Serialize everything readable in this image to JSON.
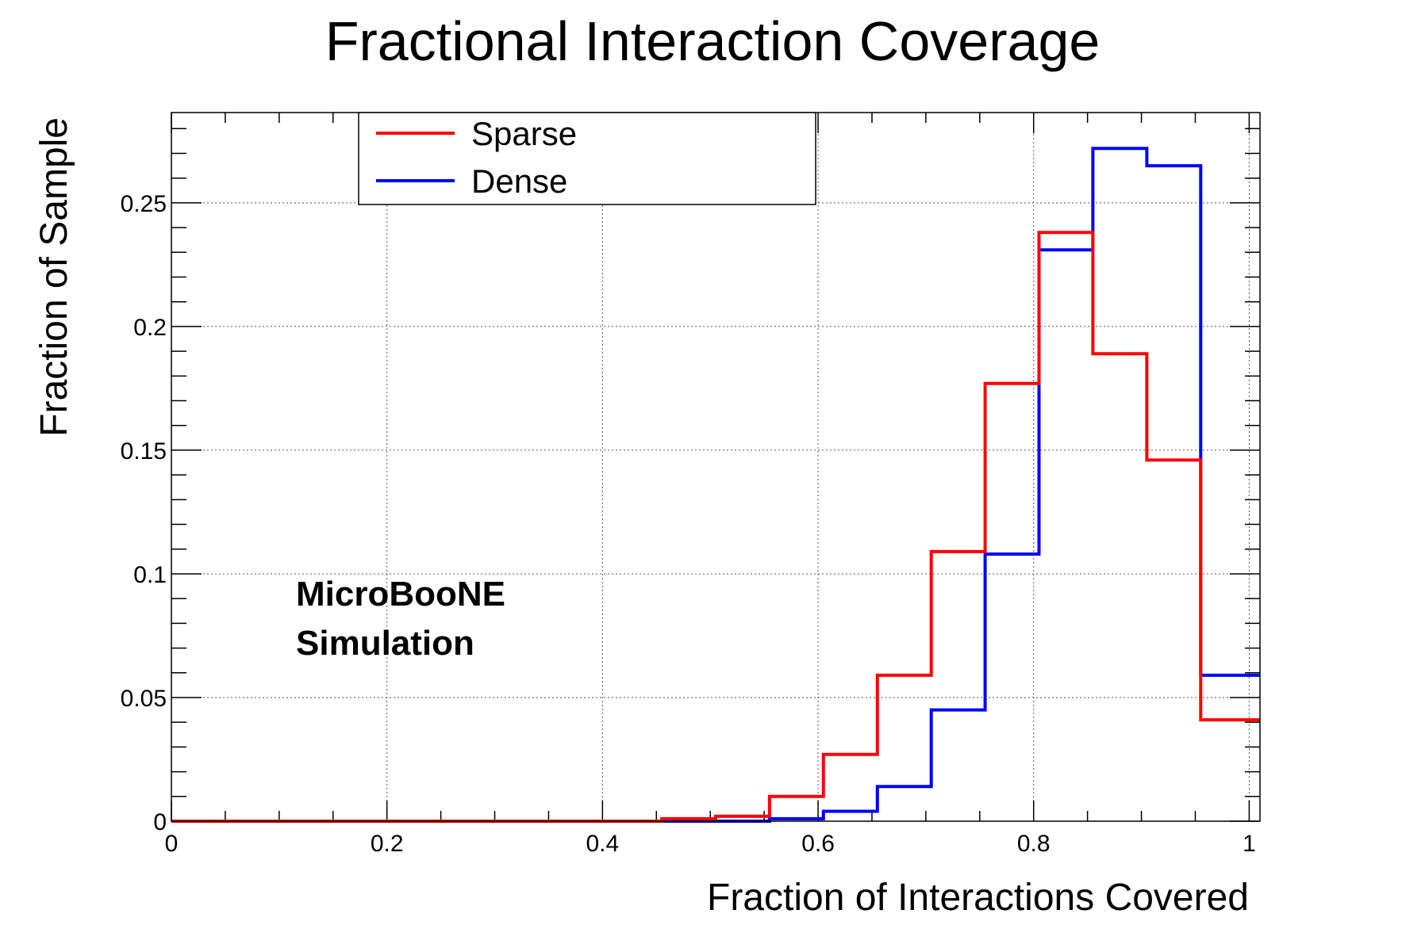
{
  "chart_data": {
    "type": "histogram",
    "title": "Fractional Interaction Coverage",
    "xlabel": "Fraction of Interactions Covered",
    "ylabel": "Fraction of Sample",
    "xlim": [
      0,
      1.01
    ],
    "ylim": [
      0,
      0.2865
    ],
    "grid": true,
    "x_ticks": [
      0,
      0.2,
      0.4,
      0.6,
      0.8,
      1
    ],
    "x_tick_labels": [
      "0",
      "0.2",
      "0.4",
      "0.6",
      "0.8",
      "1"
    ],
    "y_ticks": [
      0,
      0.05,
      0.1,
      0.15,
      0.2,
      0.25
    ],
    "y_tick_labels": [
      "0",
      "0.05",
      "0.1",
      "0.15",
      "0.2",
      "0.25"
    ],
    "bin_edges": [
      0,
      0.05,
      0.1,
      0.15,
      0.2,
      0.25,
      0.3,
      0.35,
      0.4,
      0.455,
      0.505,
      0.555,
      0.605,
      0.655,
      0.705,
      0.755,
      0.805,
      0.855,
      0.905,
      0.955,
      1.01
    ],
    "series": [
      {
        "name": "Sparse",
        "color": "#ff0000",
        "values": [
          0,
          0,
          0,
          0,
          0,
          0,
          0,
          0,
          0,
          0.001,
          0.002,
          0.01,
          0.027,
          0.059,
          0.109,
          0.177,
          0.238,
          0.189,
          0.146,
          0.041
        ]
      },
      {
        "name": "Dense",
        "color": "#0000ff",
        "values": [
          0,
          0,
          0,
          0,
          0,
          0,
          0,
          0,
          0,
          0,
          0,
          0.001,
          0.004,
          0.014,
          0.045,
          0.108,
          0.231,
          0.272,
          0.265,
          0.059
        ]
      }
    ],
    "legend": {
      "position": "top-center",
      "entries": [
        "Sparse",
        "Dense"
      ]
    },
    "annotation": {
      "lines": [
        "MicroBooNE",
        "Simulation"
      ]
    }
  }
}
